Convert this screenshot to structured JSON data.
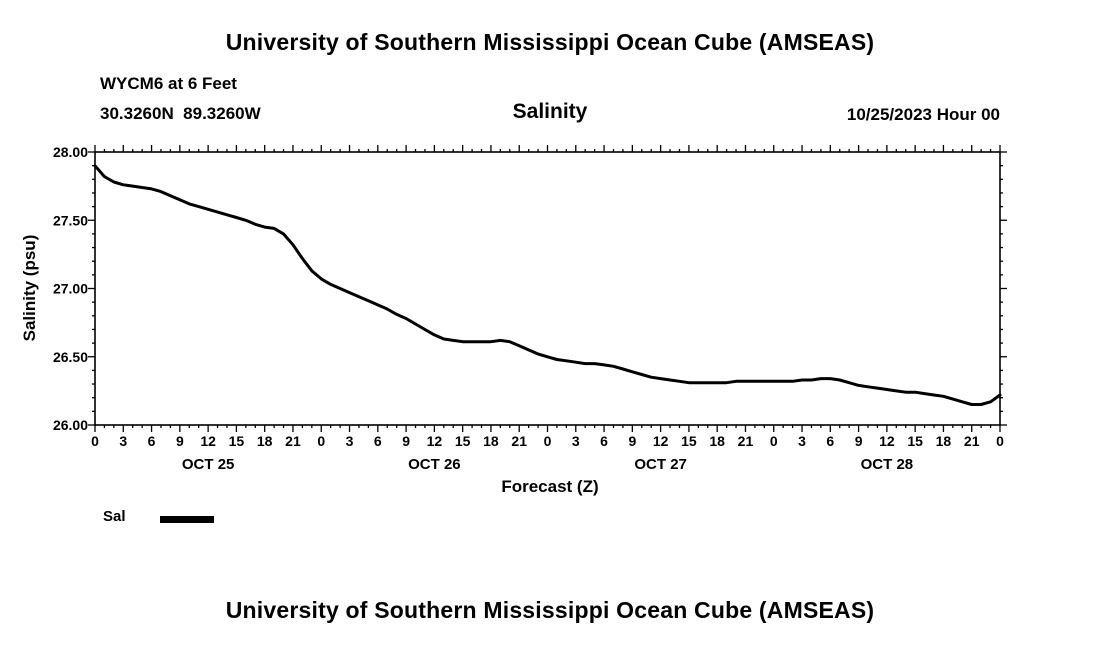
{
  "header": {
    "title": "University of Southern Mississippi Ocean Cube (AMSEAS)",
    "station": "WYCM6 at 6 Feet",
    "coordinates": "30.3260N  89.3260W",
    "plot_title": "Salinity",
    "run_time": "10/25/2023 Hour 00"
  },
  "footer": {
    "title": "University of Southern Mississippi Ocean Cube (AMSEAS)"
  },
  "legend": {
    "label": "Sal",
    "line_color": "#000000",
    "position": "bottom-left"
  },
  "chart_data": {
    "type": "line",
    "title": "Salinity",
    "xlabel": "Forecast (Z)",
    "ylabel": "Salinity (psu)",
    "xlim": [
      0,
      96
    ],
    "ylim": [
      26.0,
      28.0
    ],
    "grid": false,
    "line_color": "#000000",
    "y_tick_values": [
      26.0,
      26.5,
      27.0,
      27.5,
      28.0
    ],
    "y_tick_labels": [
      "26.00",
      "26.50",
      "27.00",
      "27.50",
      "28.00"
    ],
    "x_tick_step_hours": 3,
    "x_tick_labels": [
      "0",
      "3",
      "6",
      "9",
      "12",
      "15",
      "18",
      "21",
      "0",
      "3",
      "6",
      "9",
      "12",
      "15",
      "18",
      "21",
      "0",
      "3",
      "6",
      "9",
      "12",
      "15",
      "18",
      "21",
      "0",
      "3",
      "6",
      "9",
      "12",
      "15",
      "18",
      "21",
      "0"
    ],
    "day_labels": [
      "OCT 25",
      "OCT 26",
      "OCT 27",
      "OCT 28"
    ],
    "day_label_center_hours": [
      12,
      36,
      60,
      84
    ],
    "series": [
      {
        "name": "Sal",
        "color": "#000000",
        "x_step_hours": 1,
        "values": [
          27.9,
          27.82,
          27.78,
          27.76,
          27.75,
          27.74,
          27.73,
          27.71,
          27.68,
          27.65,
          27.62,
          27.6,
          27.58,
          27.56,
          27.54,
          27.52,
          27.5,
          27.47,
          27.45,
          27.44,
          27.4,
          27.32,
          27.22,
          27.13,
          27.07,
          27.03,
          27.0,
          26.97,
          26.94,
          26.91,
          26.88,
          26.85,
          26.81,
          26.78,
          26.74,
          26.7,
          26.66,
          26.63,
          26.62,
          26.61,
          26.61,
          26.61,
          26.61,
          26.62,
          26.61,
          26.58,
          26.55,
          26.52,
          26.5,
          26.48,
          26.47,
          26.46,
          26.45,
          26.45,
          26.44,
          26.43,
          26.41,
          26.39,
          26.37,
          26.35,
          26.34,
          26.33,
          26.32,
          26.31,
          26.31,
          26.31,
          26.31,
          26.31,
          26.32,
          26.32,
          26.32,
          26.32,
          26.32,
          26.32,
          26.32,
          26.33,
          26.33,
          26.34,
          26.34,
          26.33,
          26.31,
          26.29,
          26.28,
          26.27,
          26.26,
          26.25,
          26.24,
          26.24,
          26.23,
          26.22,
          26.21,
          26.19,
          26.17,
          26.15,
          26.15,
          26.17,
          26.22
        ]
      }
    ]
  }
}
